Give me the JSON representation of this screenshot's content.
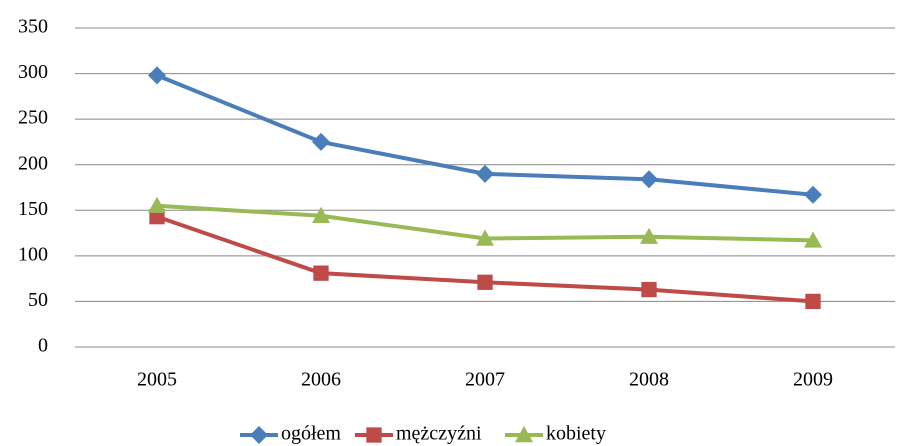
{
  "chart_data": {
    "type": "line",
    "categories": [
      "2005",
      "2006",
      "2007",
      "2008",
      "2009"
    ],
    "series": [
      {
        "name": "ogółem",
        "color": "#4a7ebb",
        "marker": "diamond",
        "values": [
          298,
          225,
          190,
          184,
          167
        ]
      },
      {
        "name": "mężczyźni",
        "color": "#be4b48",
        "marker": "square",
        "values": [
          143,
          81,
          71,
          63,
          50
        ]
      },
      {
        "name": "kobiety",
        "color": "#98b954",
        "marker": "triangle",
        "values": [
          155,
          144,
          119,
          121,
          117
        ]
      }
    ],
    "ylim": [
      0,
      350
    ],
    "yticks": [
      0,
      50,
      100,
      150,
      200,
      250,
      300,
      350
    ],
    "grid": true,
    "legend": "bottom"
  }
}
